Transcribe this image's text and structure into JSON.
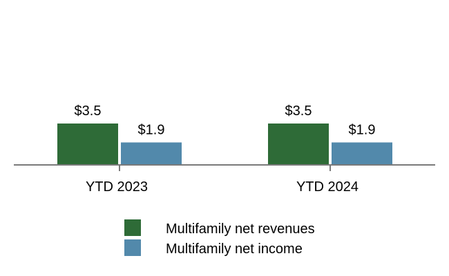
{
  "chart_data": {
    "type": "bar",
    "categories": [
      "YTD 2023",
      "YTD 2024"
    ],
    "series": [
      {
        "name": "Multifamily net revenues",
        "values": [
          3.5,
          3.5
        ],
        "labels": [
          "$3.5",
          "$3.5"
        ],
        "color": "#2e6b37"
      },
      {
        "name": "Multifamily net income",
        "values": [
          1.9,
          1.9
        ],
        "labels": [
          "$1.9",
          "$1.9"
        ],
        "color": "#5289ab"
      }
    ],
    "title": "",
    "xlabel": "",
    "ylabel": "",
    "ylim": [
      0,
      11
    ],
    "grid": false,
    "legend": "bottom",
    "axis_color": "#7a7a7a"
  }
}
